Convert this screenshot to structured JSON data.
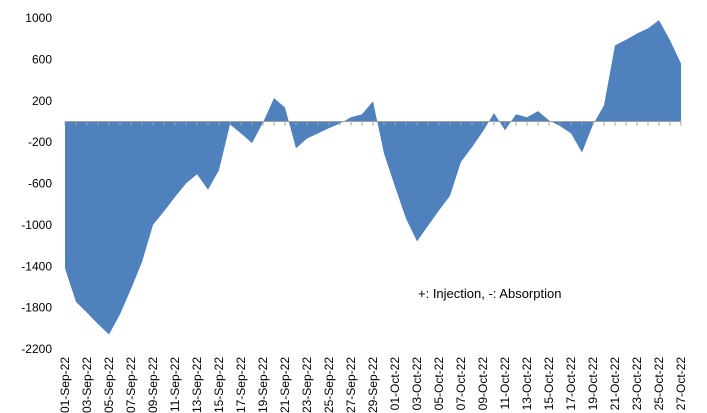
{
  "chart_data": {
    "type": "area",
    "categories": [
      "01-Sep-22",
      null,
      "03-Sep-22",
      null,
      "05-Sep-22",
      null,
      "07-Sep-22",
      null,
      "09-Sep-22",
      null,
      "11-Sep-22",
      null,
      "13-Sep-22",
      null,
      "15-Sep-22",
      null,
      "17-Sep-22",
      null,
      "19-Sep-22",
      null,
      "21-Sep-22",
      null,
      "23-Sep-22",
      null,
      "25-Sep-22",
      null,
      "27-Sep-22",
      null,
      "29-Sep-22",
      null,
      "01-Oct-22",
      null,
      "03-Oct-22",
      null,
      "05-Oct-22",
      null,
      "07-Oct-22",
      null,
      "09-Oct-22",
      null,
      "11-Oct-22",
      null,
      "13-Oct-22",
      null,
      "15-Oct-22",
      null,
      "17-Oct-22",
      null,
      "19-Oct-22",
      null,
      "21-Oct-22",
      null,
      "23-Oct-22",
      null,
      "25-Oct-22",
      null,
      "27-Oct-22"
    ],
    "values": [
      -1420,
      -1745,
      -1850,
      -1960,
      -2060,
      -1865,
      -1620,
      -1360,
      -1000,
      -870,
      -730,
      -600,
      -510,
      -660,
      -470,
      -30,
      -115,
      -210,
      -10,
      225,
      135,
      -260,
      -165,
      -115,
      -65,
      -20,
      40,
      70,
      195,
      -310,
      -630,
      -940,
      -1160,
      -1010,
      -860,
      -720,
      -390,
      -250,
      -95,
      80,
      -85,
      70,
      40,
      100,
      10,
      -45,
      -115,
      -300,
      -30,
      155,
      735,
      790,
      850,
      900,
      980,
      785,
      560
    ],
    "color": "#4f81bd",
    "ylim": [
      -2200,
      1000
    ],
    "yticks": [
      1000,
      600,
      200,
      -200,
      -600,
      -1000,
      -1400,
      -1800,
      -2200
    ],
    "annotation": "+: Injection, -: Absorption"
  }
}
